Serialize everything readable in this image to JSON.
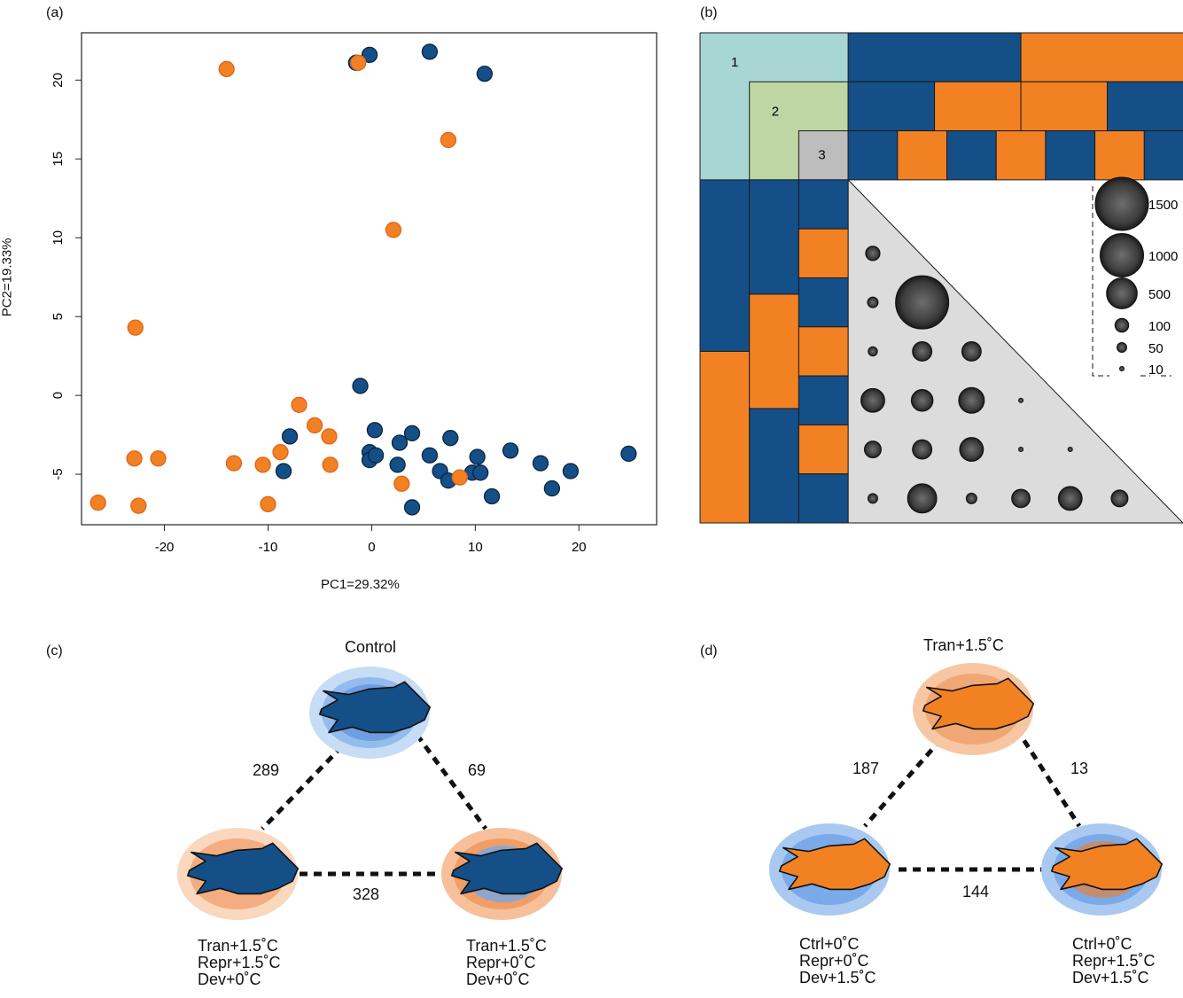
{
  "colors": {
    "blue": "#154f88",
    "orange": "#f28123",
    "teal": "#a8d6d3",
    "green": "#bdd6a4",
    "gray": "#bdbdbd",
    "triangle": "#dcdcdc"
  },
  "panels": {
    "a": "(a)",
    "b": "(b)",
    "c": "(c)",
    "d": "(d)"
  },
  "chart_data": [
    {
      "panel": "a",
      "type": "scatter",
      "xlabel": "PC1=29.32%",
      "ylabel": "PC2=19.33%",
      "xlim": [
        -28,
        27.5
      ],
      "ylim": [
        -8.2,
        23
      ],
      "xticks": [
        -20,
        -10,
        0,
        10,
        20
      ],
      "yticks": [
        -5,
        0,
        5,
        10,
        15,
        20
      ],
      "series": [
        {
          "color": "#154f88",
          "points": [
            [
              -1.5,
              21.1
            ],
            [
              -0.2,
              21.6
            ],
            [
              5.6,
              21.8
            ],
            [
              10.9,
              20.4
            ],
            [
              -1.1,
              0.6
            ],
            [
              0.3,
              -2.2
            ],
            [
              -0.2,
              -3.6
            ],
            [
              -0.2,
              -4.1
            ],
            [
              0.4,
              -3.8
            ],
            [
              2.7,
              -3.0
            ],
            [
              3.9,
              -2.4
            ],
            [
              2.5,
              -4.4
            ],
            [
              5.6,
              -3.8
            ],
            [
              7.6,
              -2.7
            ],
            [
              10.2,
              -3.9
            ],
            [
              13.4,
              -3.5
            ],
            [
              16.3,
              -4.3
            ],
            [
              19.2,
              -4.8
            ],
            [
              24.8,
              -3.7
            ],
            [
              6.6,
              -4.8
            ],
            [
              7.4,
              -5.4
            ],
            [
              9.7,
              -4.9
            ],
            [
              10.5,
              -4.9
            ],
            [
              11.6,
              -6.4
            ],
            [
              17.4,
              -5.9
            ],
            [
              3.9,
              -7.1
            ],
            [
              -7.9,
              -2.6
            ],
            [
              -8.5,
              -4.8
            ]
          ]
        },
        {
          "color": "#f28123",
          "points": [
            [
              -14.0,
              20.7
            ],
            [
              -1.3,
              21.1
            ],
            [
              7.4,
              16.2
            ],
            [
              2.1,
              10.5
            ],
            [
              -22.8,
              4.3
            ],
            [
              -7.0,
              -0.6
            ],
            [
              -5.5,
              -1.9
            ],
            [
              -4.1,
              -2.6
            ],
            [
              -8.8,
              -3.6
            ],
            [
              -4.0,
              -4.4
            ],
            [
              -10.5,
              -4.4
            ],
            [
              -13.3,
              -4.3
            ],
            [
              -22.9,
              -4.0
            ],
            [
              -20.6,
              -4.0
            ],
            [
              2.9,
              -5.6
            ],
            [
              8.5,
              -5.2
            ],
            [
              -26.4,
              -6.8
            ],
            [
              -22.5,
              -7.0
            ],
            [
              -10.0,
              -6.9
            ]
          ]
        }
      ]
    },
    {
      "panel": "b",
      "type": "bubble-matrix",
      "levels": [
        "1",
        "2",
        "3"
      ],
      "top_rows": [
        [
          "b",
          "o"
        ],
        [
          "b",
          "o",
          "o",
          "b"
        ],
        [
          "b",
          "o",
          "b",
          "o",
          "b",
          "o",
          "b"
        ]
      ],
      "left_cols": [
        [
          "b",
          "o"
        ],
        [
          "b",
          "o",
          "b"
        ],
        [
          "b",
          "o",
          "b",
          "o",
          "b",
          "o",
          "b"
        ]
      ],
      "bubbles": [
        [
          110
        ],
        [
          60,
          1500
        ],
        [
          45,
          200,
          200
        ],
        [
          300,
          250,
          350,
          10
        ],
        [
          150,
          200,
          300,
          5,
          10
        ],
        [
          50,
          450,
          60,
          180,
          300,
          150
        ]
      ],
      "legend": [
        {
          "label": "1500",
          "value": 1500
        },
        {
          "label": "1000",
          "value": 1000
        },
        {
          "label": "500",
          "value": 500
        },
        {
          "label": "100",
          "value": 100
        },
        {
          "label": "50",
          "value": 50
        },
        {
          "label": "10",
          "value": 10
        }
      ]
    },
    {
      "panel": "c",
      "type": "network",
      "nodes": [
        {
          "label": "Control",
          "ring": "blue",
          "fish": "blue"
        },
        {
          "label_lines": [
            "Tran+1.5˚C",
            "Repr+1.5˚C",
            "Dev+0˚C"
          ],
          "ring": "orange-light",
          "fish": "blue"
        },
        {
          "label_lines": [
            "Tran+1.5˚C",
            "Repr+0˚C",
            "Dev+0˚C"
          ],
          "ring": "orange-blue",
          "fish": "blue"
        }
      ],
      "edges": [
        {
          "from": 0,
          "to": 1,
          "value": 289
        },
        {
          "from": 0,
          "to": 2,
          "value": 69
        },
        {
          "from": 1,
          "to": 2,
          "value": 328
        }
      ]
    },
    {
      "panel": "d",
      "type": "network",
      "nodes": [
        {
          "label": "Tran+1.5˚C",
          "ring": "orange",
          "fish": "orange"
        },
        {
          "label_lines": [
            "Ctrl+0˚C",
            "Repr+0˚C",
            "Dev+1.5˚C"
          ],
          "ring": "blue",
          "fish": "orange"
        },
        {
          "label_lines": [
            "Ctrl+0˚C",
            "Repr+1.5˚C",
            "Dev+1.5˚C"
          ],
          "ring": "blue-orange",
          "fish": "orange"
        }
      ],
      "edges": [
        {
          "from": 0,
          "to": 1,
          "value": 187
        },
        {
          "from": 0,
          "to": 2,
          "value": 13
        },
        {
          "from": 1,
          "to": 2,
          "value": 144
        }
      ]
    }
  ]
}
